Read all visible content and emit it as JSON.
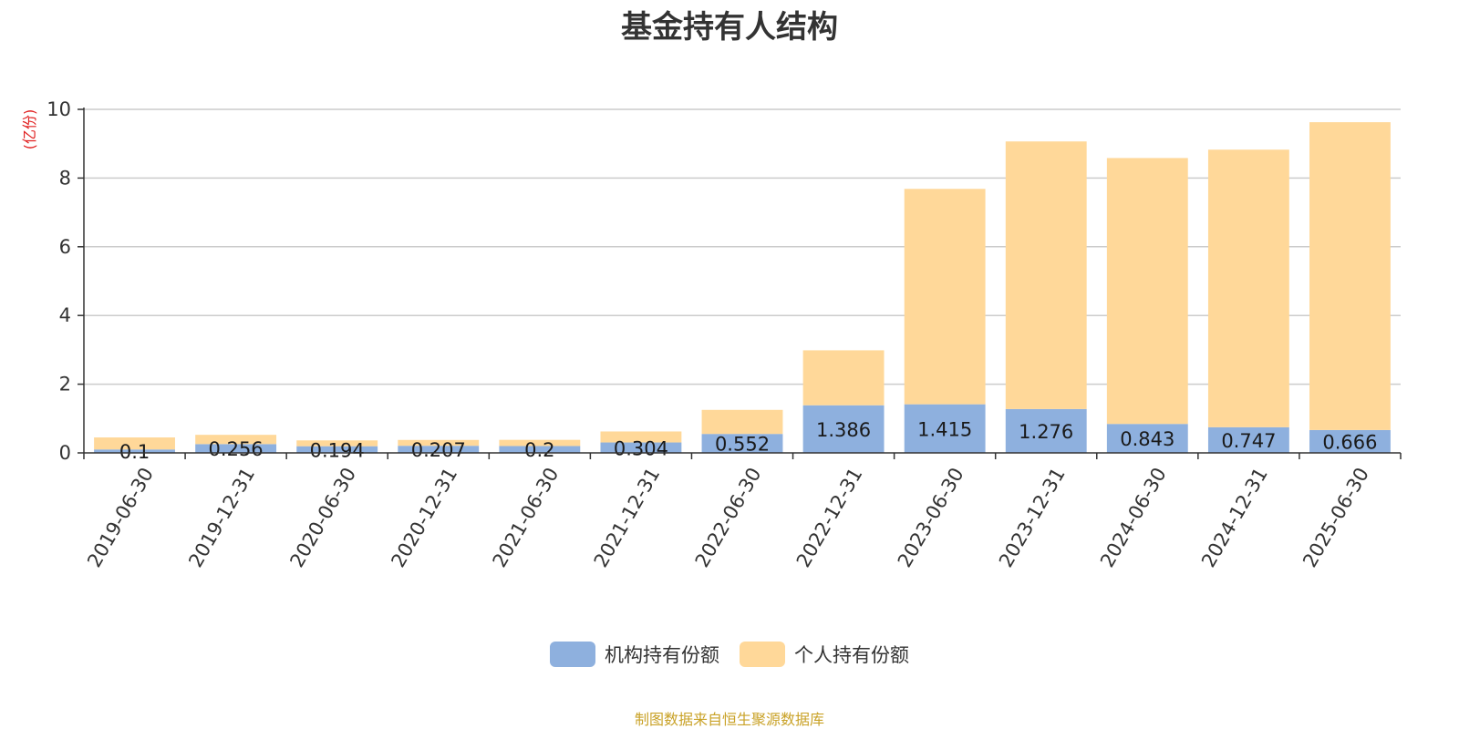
{
  "chart_data": {
    "type": "bar",
    "stacked": true,
    "title": "基金持有人结构",
    "ylabel": "(亿份)",
    "ylim": [
      0,
      10
    ],
    "yticks": [
      0,
      2,
      4,
      6,
      8,
      10
    ],
    "grid": true,
    "legend_position": "bottom",
    "categories": [
      "2019-06-30",
      "2019-12-31",
      "2020-06-30",
      "2020-12-31",
      "2021-06-30",
      "2021-12-31",
      "2022-06-30",
      "2022-12-31",
      "2023-06-30",
      "2023-12-31",
      "2024-06-30",
      "2024-12-31",
      "2025-06-30"
    ],
    "series": [
      {
        "name": "机构持有份额",
        "color": "#8eb0de",
        "values": [
          0.1,
          0.256,
          0.194,
          0.207,
          0.2,
          0.304,
          0.552,
          1.386,
          1.415,
          1.276,
          0.843,
          0.747,
          0.666
        ],
        "labels": [
          "0.1",
          "0.256",
          "0.194",
          "0.207",
          "0.2",
          "0.304",
          "0.552",
          "1.386",
          "1.415",
          "1.276",
          "0.843",
          "0.747",
          "0.666"
        ]
      },
      {
        "name": "个人持有份额",
        "color": "#ffd899",
        "values": [
          0.35,
          0.27,
          0.17,
          0.17,
          0.18,
          0.32,
          0.7,
          1.6,
          6.27,
          7.79,
          7.74,
          8.08,
          8.96
        ]
      }
    ],
    "source_note": "制图数据来自恒生聚源数据库"
  }
}
